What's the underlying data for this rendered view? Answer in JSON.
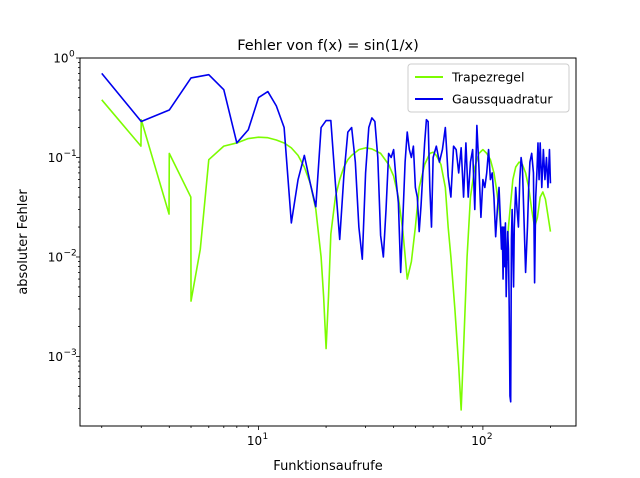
{
  "chart_data": {
    "type": "line",
    "title": "Fehler von f(x) = sin(1/x)",
    "xlabel": "Funktionsaufrufe",
    "ylabel": "absoluter Fehler",
    "xscale": "log",
    "yscale": "log",
    "xlim": [
      1.6,
      260
    ],
    "ylim": [
      0.0002,
      1.0
    ],
    "xticks": [
      {
        "value": 10,
        "label": "10",
        "sup": "1"
      },
      {
        "value": 100,
        "label": "10",
        "sup": "2"
      }
    ],
    "yticks": [
      {
        "value": 0.001,
        "label": "10",
        "sup": "−3"
      },
      {
        "value": 0.01,
        "label": "10",
        "sup": "−2"
      },
      {
        "value": 0.1,
        "label": "10",
        "sup": "−1"
      },
      {
        "value": 1,
        "label": "10",
        "sup": "0"
      }
    ],
    "legend_position": "top-right",
    "grid": false,
    "series": [
      {
        "name": "Trapezregel",
        "color": "#7cfc00",
        "x": [
          2,
          2.99,
          3,
          3.99,
          4,
          4.99,
          5,
          5.5,
          6,
          7,
          8,
          9,
          10,
          11,
          12,
          13,
          14,
          15,
          16,
          17,
          18,
          19,
          19.5,
          20,
          20.5,
          21,
          22,
          23,
          24,
          25,
          26,
          28,
          30,
          32,
          35,
          38,
          40,
          42,
          44,
          46,
          48,
          50,
          52,
          55,
          58,
          60,
          62,
          65,
          68,
          70,
          72,
          75,
          78,
          80,
          82,
          85,
          88,
          92,
          96,
          100,
          104,
          108,
          112,
          115,
          118,
          120,
          122,
          124,
          126,
          128,
          130,
          133,
          136,
          140,
          145,
          150,
          155,
          160,
          165,
          170,
          175,
          180,
          185,
          190,
          200
        ],
        "y": [
          0.38,
          0.13,
          0.24,
          0.027,
          0.11,
          0.04,
          0.0036,
          0.012,
          0.095,
          0.13,
          0.14,
          0.155,
          0.16,
          0.158,
          0.15,
          0.14,
          0.125,
          0.105,
          0.08,
          0.055,
          0.03,
          0.01,
          0.004,
          0.0012,
          0.004,
          0.017,
          0.04,
          0.06,
          0.08,
          0.095,
          0.105,
          0.12,
          0.125,
          0.122,
          0.11,
          0.085,
          0.065,
          0.04,
          0.018,
          0.006,
          0.009,
          0.02,
          0.05,
          0.085,
          0.11,
          0.113,
          0.105,
          0.085,
          0.05,
          0.02,
          0.01,
          0.003,
          0.0008,
          0.00029,
          0.0012,
          0.01,
          0.04,
          0.08,
          0.11,
          0.12,
          0.11,
          0.095,
          0.07,
          0.048,
          0.03,
          0.02,
          0.013,
          0.008,
          0.009,
          0.012,
          0.02,
          0.035,
          0.06,
          0.08,
          0.09,
          0.085,
          0.07,
          0.05,
          0.03,
          0.02,
          0.025,
          0.04,
          0.045,
          0.038,
          0.018
        ]
      },
      {
        "name": "Gaussquadratur",
        "color": "#0000ee",
        "x": [
          2,
          3,
          4,
          5,
          6,
          7,
          8,
          9,
          10,
          11,
          12,
          13,
          14,
          15,
          16,
          17,
          18,
          19,
          20,
          21,
          22,
          23,
          24,
          25,
          26,
          27,
          28,
          29,
          30,
          31,
          32,
          33,
          34,
          35,
          36,
          37,
          38,
          39,
          40,
          41,
          42,
          43,
          44,
          45,
          46,
          47,
          48,
          49,
          50,
          51,
          52,
          53,
          54,
          55,
          56,
          57,
          58,
          59,
          60,
          62,
          64,
          66,
          68,
          70,
          72,
          74,
          76,
          78,
          80,
          82,
          84,
          86,
          88,
          90,
          92,
          94,
          96,
          98,
          100,
          102,
          104,
          106,
          108,
          110,
          112,
          114,
          116,
          118,
          120,
          121,
          122,
          123,
          124,
          125,
          126,
          127,
          128,
          129,
          130,
          131,
          132,
          133,
          134,
          135,
          136,
          137,
          138,
          140,
          142,
          144,
          146,
          148,
          150,
          152,
          155,
          158,
          160,
          162,
          165,
          168,
          170,
          172,
          174,
          176,
          178,
          180,
          183,
          186,
          189,
          192,
          195,
          198,
          200
        ],
        "y": [
          0.7,
          0.23,
          0.3,
          0.63,
          0.68,
          0.48,
          0.14,
          0.19,
          0.4,
          0.46,
          0.33,
          0.2,
          0.022,
          0.06,
          0.105,
          0.055,
          0.032,
          0.2,
          0.235,
          0.235,
          0.055,
          0.015,
          0.065,
          0.18,
          0.2,
          0.09,
          0.02,
          0.0095,
          0.07,
          0.2,
          0.25,
          0.23,
          0.1,
          0.0165,
          0.01,
          0.03,
          0.11,
          0.1,
          0.12,
          0.06,
          0.035,
          0.007,
          0.025,
          0.09,
          0.18,
          0.12,
          0.1,
          0.13,
          0.05,
          0.04,
          0.018,
          0.033,
          0.07,
          0.14,
          0.24,
          0.23,
          0.05,
          0.02,
          0.1,
          0.13,
          0.09,
          0.12,
          0.2,
          0.065,
          0.04,
          0.13,
          0.12,
          0.07,
          0.125,
          0.04,
          0.14,
          0.04,
          0.09,
          0.12,
          0.03,
          0.21,
          0.08,
          0.025,
          0.06,
          0.05,
          0.07,
          0.12,
          0.06,
          0.07,
          0.04,
          0.016,
          0.03,
          0.05,
          0.02,
          0.012,
          0.02,
          0.006,
          0.02,
          0.008,
          0.022,
          0.004,
          0.009,
          0.018,
          0.012,
          0.003,
          0.0004,
          0.00035,
          0.015,
          0.03,
          0.012,
          0.005,
          0.02,
          0.05,
          0.03,
          0.02,
          0.06,
          0.1,
          0.08,
          0.03,
          0.007,
          0.02,
          0.05,
          0.09,
          0.11,
          0.07,
          0.0055,
          0.04,
          0.07,
          0.14,
          0.06,
          0.14,
          0.05,
          0.12,
          0.06,
          0.1,
          0.05,
          0.12,
          0.055
        ]
      }
    ]
  }
}
